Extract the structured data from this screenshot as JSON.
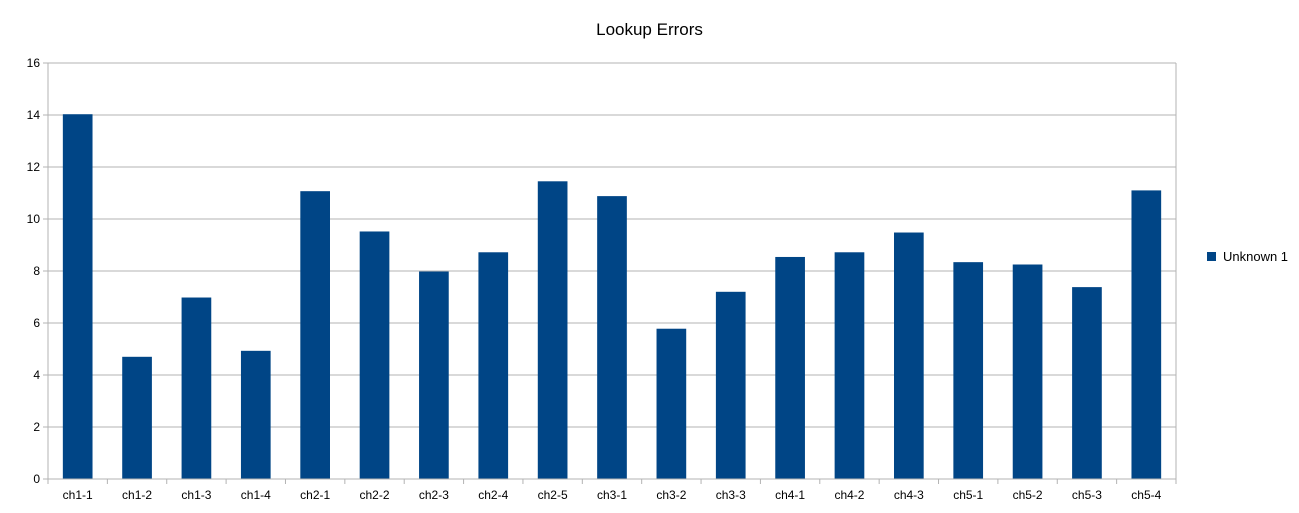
{
  "chart_data": {
    "type": "bar",
    "title": "Lookup Errors",
    "xlabel": "",
    "ylabel": "",
    "categories": [
      "ch1-1",
      "ch1-2",
      "ch1-3",
      "ch1-4",
      "ch2-1",
      "ch2-2",
      "ch2-3",
      "ch2-4",
      "ch2-5",
      "ch3-1",
      "ch3-2",
      "ch3-3",
      "ch4-1",
      "ch4-2",
      "ch4-3",
      "ch5-1",
      "ch5-2",
      "ch5-3",
      "ch5-4"
    ],
    "series": [
      {
        "name": "Unknown 1",
        "color": "#004586",
        "values": [
          14.03,
          4.7,
          6.98,
          4.93,
          11.07,
          9.52,
          7.98,
          8.72,
          11.45,
          10.88,
          5.78,
          7.2,
          8.54,
          8.72,
          9.48,
          8.34,
          8.25,
          7.38,
          11.1
        ]
      }
    ],
    "ylim": [
      0,
      16
    ],
    "yticks": [
      0,
      2,
      4,
      6,
      8,
      10,
      12,
      14,
      16
    ],
    "grid": true,
    "legend_position": "right"
  }
}
